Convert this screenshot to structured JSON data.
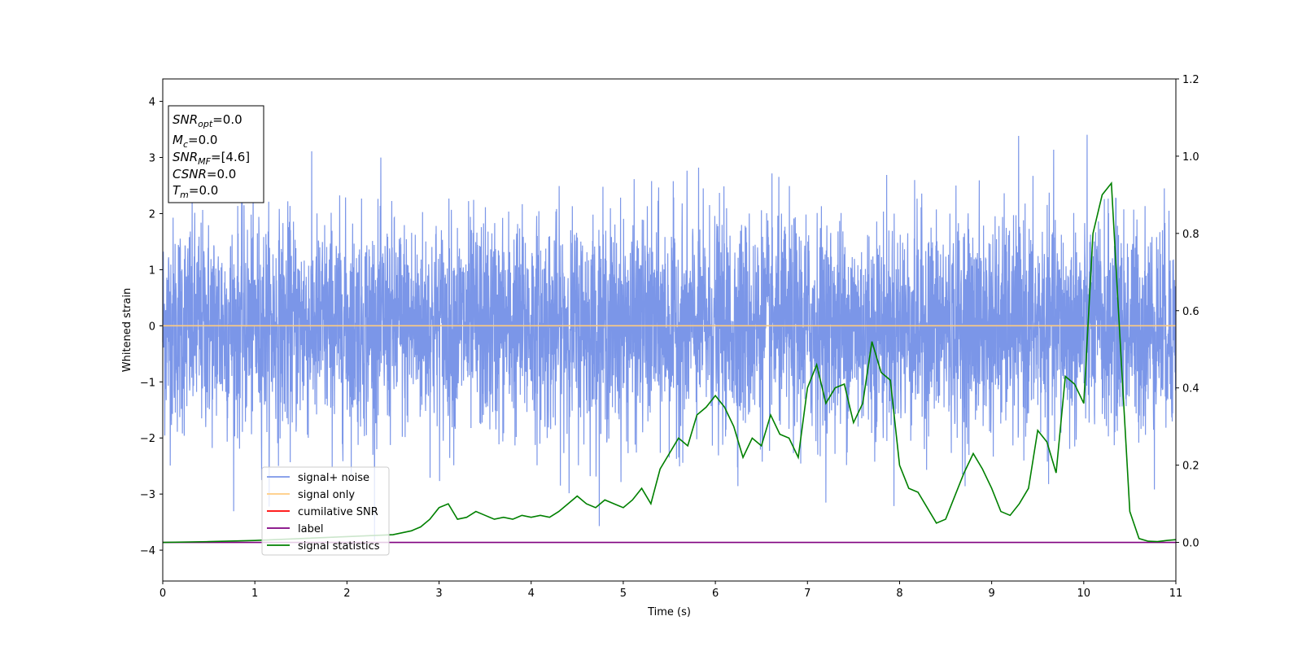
{
  "chart_data": {
    "type": "line",
    "xlabel": "Time (s)",
    "ylabel": "Whitened strain",
    "xlim": [
      0,
      11
    ],
    "ylim": [
      -4.55,
      4.4
    ],
    "y2lim": [
      -0.1,
      1.2
    ],
    "xticks": [
      0,
      1,
      2,
      3,
      4,
      5,
      6,
      7,
      8,
      9,
      10,
      11
    ],
    "yticks": [
      -4,
      -3,
      -2,
      -1,
      0,
      1,
      2,
      3,
      4
    ],
    "y2ticks": [
      0.0,
      0.2,
      0.4,
      0.6,
      0.8,
      1.0,
      1.2
    ],
    "grid": false,
    "legend_position": "lower-left",
    "info_box": [
      {
        "base": "SNR",
        "sub": "opt",
        "value": "=0.0"
      },
      {
        "base": "M",
        "sub": "c",
        "value": "=0.0"
      },
      {
        "base": "SNR",
        "sub": "MF",
        "value": "=[4.6]"
      },
      {
        "base": "CSNR",
        "sub": "",
        "value": "=0.0"
      },
      {
        "base": "T",
        "sub": "m",
        "value": "=0.0"
      }
    ],
    "series": [
      {
        "name": "signal+ noise",
        "color": "#7b96e8",
        "axis": "left",
        "kind": "noise",
        "amplitude_range": [
          -4.15,
          4.0
        ]
      },
      {
        "name": "signal only",
        "color": "#ffcc80",
        "axis": "left",
        "x": [
          0,
          11
        ],
        "y": [
          0,
          0
        ]
      },
      {
        "name": "cumilative SNR",
        "color": "#ff0000",
        "axis": "left",
        "x": [],
        "y": []
      },
      {
        "name": "label",
        "color": "#800080",
        "axis": "right",
        "x": [
          0,
          11
        ],
        "y": [
          0.0,
          0.0
        ]
      },
      {
        "name": "signal statistics",
        "color": "#008000",
        "axis": "right",
        "x": [
          0.0,
          0.5,
          1.0,
          1.5,
          2.0,
          2.5,
          2.6,
          2.7,
          2.8,
          2.9,
          3.0,
          3.1,
          3.2,
          3.3,
          3.4,
          3.5,
          3.6,
          3.7,
          3.8,
          3.9,
          4.0,
          4.1,
          4.2,
          4.3,
          4.4,
          4.5,
          4.6,
          4.7,
          4.8,
          4.9,
          5.0,
          5.1,
          5.2,
          5.3,
          5.4,
          5.5,
          5.6,
          5.7,
          5.8,
          5.9,
          6.0,
          6.1,
          6.2,
          6.3,
          6.4,
          6.5,
          6.6,
          6.7,
          6.8,
          6.9,
          7.0,
          7.1,
          7.2,
          7.3,
          7.4,
          7.5,
          7.6,
          7.7,
          7.8,
          7.9,
          8.0,
          8.1,
          8.2,
          8.3,
          8.4,
          8.5,
          8.6,
          8.7,
          8.8,
          8.9,
          9.0,
          9.1,
          9.2,
          9.3,
          9.4,
          9.5,
          9.6,
          9.7,
          9.8,
          9.9,
          10.0,
          10.1,
          10.2,
          10.3,
          10.4,
          10.5,
          10.6,
          10.7,
          10.8,
          10.9,
          11.0
        ],
        "y": [
          0.0,
          0.002,
          0.005,
          0.01,
          0.015,
          0.02,
          0.025,
          0.03,
          0.04,
          0.06,
          0.09,
          0.1,
          0.06,
          0.065,
          0.08,
          0.07,
          0.06,
          0.065,
          0.06,
          0.07,
          0.065,
          0.07,
          0.065,
          0.08,
          0.1,
          0.12,
          0.1,
          0.09,
          0.11,
          0.1,
          0.09,
          0.11,
          0.14,
          0.1,
          0.19,
          0.23,
          0.27,
          0.25,
          0.33,
          0.35,
          0.38,
          0.35,
          0.3,
          0.22,
          0.27,
          0.25,
          0.33,
          0.28,
          0.27,
          0.22,
          0.4,
          0.46,
          0.36,
          0.4,
          0.41,
          0.31,
          0.36,
          0.52,
          0.44,
          0.42,
          0.2,
          0.14,
          0.13,
          0.09,
          0.05,
          0.06,
          0.12,
          0.18,
          0.23,
          0.19,
          0.14,
          0.08,
          0.07,
          0.1,
          0.14,
          0.29,
          0.26,
          0.18,
          0.43,
          0.41,
          0.36,
          0.8,
          0.9,
          0.93,
          0.5,
          0.08,
          0.01,
          0.003,
          0.002,
          0.005,
          0.007
        ]
      }
    ]
  }
}
